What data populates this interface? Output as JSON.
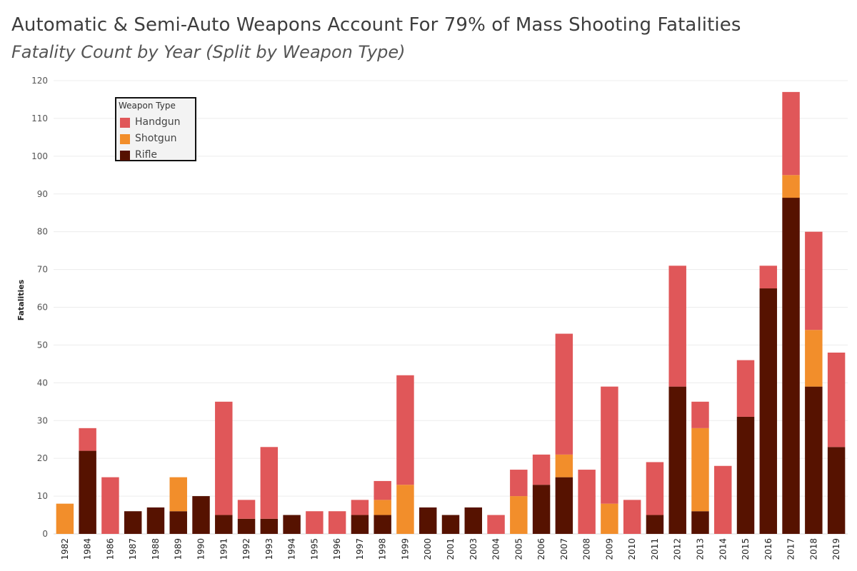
{
  "header": {
    "title": "Automatic & Semi-Auto Weapons Account For 79% of Mass Shooting Fatalities",
    "subtitle": "Fatality Count by Year (Split by Weapon Type)"
  },
  "legend": {
    "title": "Weapon Type",
    "items": [
      {
        "label": "Handgun",
        "color": "#e05759"
      },
      {
        "label": "Shotgun",
        "color": "#f28e2b"
      },
      {
        "label": "Rifle",
        "color": "#561200"
      }
    ]
  },
  "chart_data": {
    "type": "bar",
    "stacked": true,
    "ylabel": "Fatalities",
    "xlabel": "",
    "ylim": [
      0,
      120
    ],
    "yticks": [
      0,
      10,
      20,
      30,
      40,
      50,
      60,
      70,
      80,
      90,
      100,
      110,
      120
    ],
    "grid": true,
    "legend_position": "top-left",
    "categories": [
      "1982",
      "1984",
      "1986",
      "1987",
      "1988",
      "1989",
      "1990",
      "1991",
      "1992",
      "1993",
      "1994",
      "1995",
      "1996",
      "1997",
      "1998",
      "1999",
      "2000",
      "2001",
      "2003",
      "2004",
      "2005",
      "2006",
      "2007",
      "2008",
      "2009",
      "2010",
      "2011",
      "2012",
      "2013",
      "2014",
      "2015",
      "2016",
      "2017",
      "2018",
      "2019"
    ],
    "series": [
      {
        "name": "Rifle",
        "color": "#561200",
        "values": [
          0,
          22,
          0,
          6,
          7,
          6,
          10,
          5,
          4,
          4,
          5,
          0,
          0,
          5,
          5,
          0,
          7,
          5,
          7,
          0,
          0,
          13,
          15,
          0,
          0,
          0,
          5,
          39,
          6,
          0,
          31,
          65,
          89,
          39,
          23
        ]
      },
      {
        "name": "Shotgun",
        "color": "#f28e2b",
        "values": [
          8,
          0,
          0,
          0,
          0,
          9,
          0,
          0,
          0,
          0,
          0,
          0,
          0,
          0,
          4,
          13,
          0,
          0,
          0,
          0,
          10,
          0,
          6,
          0,
          8,
          0,
          0,
          0,
          22,
          0,
          0,
          0,
          6,
          15,
          0
        ]
      },
      {
        "name": "Handgun",
        "color": "#e05759",
        "values": [
          0,
          6,
          15,
          0,
          0,
          0,
          0,
          30,
          5,
          19,
          0,
          6,
          6,
          4,
          5,
          29,
          0,
          0,
          0,
          5,
          7,
          8,
          32,
          17,
          31,
          9,
          14,
          32,
          7,
          18,
          15,
          6,
          22,
          26,
          25
        ]
      }
    ]
  }
}
